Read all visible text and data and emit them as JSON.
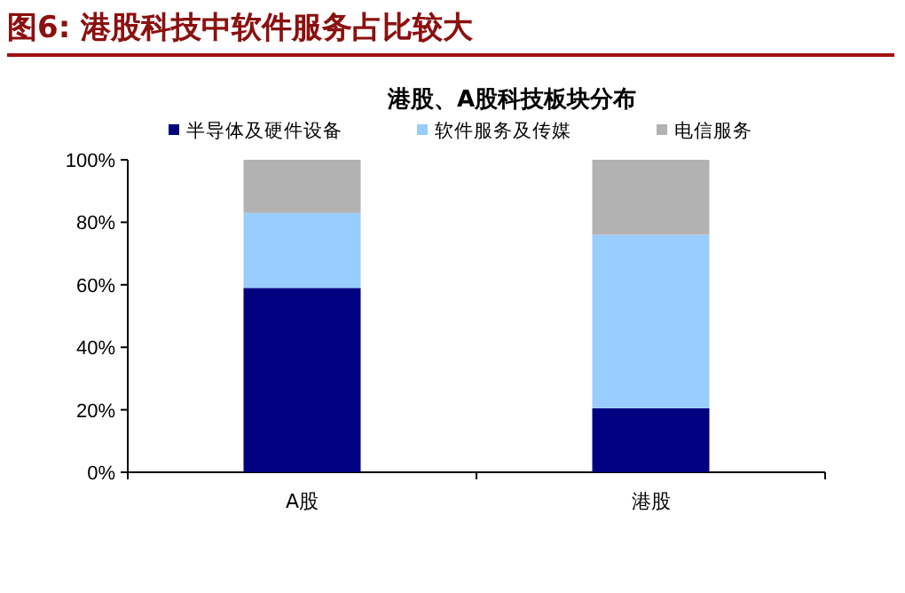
{
  "chart_data": {
    "type": "bar",
    "title": "图6:  港股科技中软件服务占比较大",
    "subtitle": "港股、A股科技板块分布",
    "categories": [
      "A股",
      "港股"
    ],
    "stacked": true,
    "legend": "top",
    "series": [
      {
        "name": "半导体及硬件设备",
        "color": "#000080",
        "values": [
          59,
          20.5
        ]
      },
      {
        "name": "软件服务及传媒",
        "color": "#99ccff",
        "values": [
          24,
          55.5
        ]
      },
      {
        "name": "电信服务",
        "color": "#b2b2b2",
        "values": [
          17,
          24
        ]
      }
    ],
    "ylim": [
      0,
      100
    ],
    "yticks": [
      {
        "value": 0,
        "label": "0%"
      },
      {
        "value": 20,
        "label": "20%"
      },
      {
        "value": 40,
        "label": "40%"
      },
      {
        "value": 60,
        "label": "60%"
      },
      {
        "value": 80,
        "label": "80%"
      },
      {
        "value": 100,
        "label": "100%"
      }
    ]
  }
}
